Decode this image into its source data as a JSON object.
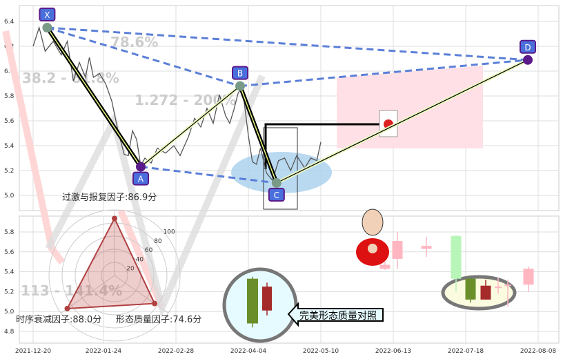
{
  "chart_data": [
    {
      "type": "line",
      "panel": "top",
      "ylim": [
        4.9,
        6.5
      ],
      "yticks": [
        5.0,
        5.2,
        5.4,
        5.6,
        5.8,
        6.0,
        6.2,
        6.4
      ],
      "grid": true,
      "pattern_points": [
        {
          "label": "X",
          "date": "2021-12-27",
          "value": 6.35
        },
        {
          "label": "A",
          "date": "2022-02-11",
          "value": 5.23
        },
        {
          "label": "B",
          "date": "2022-03-31",
          "value": 5.88
        },
        {
          "label": "C",
          "date": "2022-04-18",
          "value": 5.1
        },
        {
          "label": "D",
          "date": "2022-08-05",
          "value": 6.09
        }
      ],
      "price_series": [
        [
          "2021-12-20",
          6.2
        ],
        [
          "2021-12-23",
          6.35
        ],
        [
          "2021-12-26",
          6.16
        ],
        [
          "2021-12-30",
          6.24
        ],
        [
          "2022-01-03",
          6.13
        ],
        [
          "2022-01-06",
          6.24
        ],
        [
          "2022-01-09",
          5.92
        ],
        [
          "2022-01-12",
          6.07
        ],
        [
          "2022-01-15",
          5.95
        ],
        [
          "2022-01-17",
          6.11
        ],
        [
          "2022-01-19",
          5.95
        ],
        [
          "2022-01-22",
          5.98
        ],
        [
          "2022-01-25",
          5.9
        ],
        [
          "2022-01-28",
          5.76
        ],
        [
          "2022-01-31",
          5.52
        ],
        [
          "2022-02-03",
          5.33
        ],
        [
          "2022-02-05",
          5.32
        ],
        [
          "2022-02-07",
          5.52
        ],
        [
          "2022-02-09",
          5.45
        ],
        [
          "2022-02-11",
          5.24
        ],
        [
          "2022-02-13",
          5.3
        ],
        [
          "2022-02-16",
          5.26
        ],
        [
          "2022-02-19",
          5.38
        ],
        [
          "2022-02-23",
          5.34
        ],
        [
          "2022-02-27",
          5.4
        ],
        [
          "2022-03-02",
          5.32
        ],
        [
          "2022-03-06",
          5.47
        ],
        [
          "2022-03-09",
          5.62
        ],
        [
          "2022-03-12",
          5.55
        ],
        [
          "2022-03-15",
          5.7
        ],
        [
          "2022-03-18",
          5.58
        ],
        [
          "2022-03-21",
          5.81
        ],
        [
          "2022-03-24",
          5.64
        ],
        [
          "2022-03-26",
          5.58
        ],
        [
          "2022-03-28",
          5.69
        ],
        [
          "2022-03-30",
          5.82
        ],
        [
          "2022-04-01",
          5.88
        ],
        [
          "2022-04-04",
          5.48
        ],
        [
          "2022-04-06",
          5.27
        ],
        [
          "2022-04-08",
          5.25
        ],
        [
          "2022-04-10",
          5.38
        ],
        [
          "2022-04-13",
          5.18
        ],
        [
          "2022-04-16",
          5.12
        ],
        [
          "2022-04-19",
          5.28
        ],
        [
          "2022-04-22",
          5.3
        ],
        [
          "2022-04-25",
          5.2
        ],
        [
          "2022-04-28",
          5.32
        ],
        [
          "2022-05-02",
          5.22
        ],
        [
          "2022-05-05",
          5.3
        ],
        [
          "2022-05-08",
          5.28
        ],
        [
          "2022-05-10",
          5.43
        ]
      ],
      "fib_labels": [
        "78.6%",
        "38.2 - 61.8%",
        "1.272 - 200%"
      ]
    },
    {
      "type": "candlestick",
      "panel": "bottom",
      "ylim": [
        4.7,
        5.95
      ],
      "yticks": [
        4.8,
        5.0,
        5.2,
        5.4,
        5.6,
        5.8
      ],
      "xticks": [
        "2021-12-20",
        "2022-01-24",
        "2022-02-28",
        "2022-04-04",
        "2022-05-10",
        "2022-06-13",
        "2022-07-18",
        "2022-08-08"
      ],
      "reference_candles": [
        {
          "color": "green",
          "open": 5.33,
          "close": 4.88,
          "high": 5.35,
          "low": 4.84
        },
        {
          "color": "red",
          "open": 5.01,
          "close": 5.25,
          "high": 5.29,
          "low": 4.96
        }
      ],
      "recent_candles": [
        {
          "color": "pink",
          "open": 5.43,
          "close": 5.47,
          "high": 5.5,
          "low": 5.42
        },
        {
          "color": "pink",
          "open": 5.53,
          "close": 5.71,
          "high": 5.8,
          "low": 5.43
        },
        {
          "color": "pink",
          "open": 5.63,
          "close": 5.66,
          "high": 5.75,
          "low": 5.55
        },
        {
          "color": "lightgreen",
          "open": 5.76,
          "close": 5.33,
          "high": 5.77,
          "low": 5.2
        },
        {
          "color": "green",
          "open": 5.33,
          "close": 5.12,
          "high": 5.34,
          "low": 5.09
        },
        {
          "color": "red",
          "open": 5.12,
          "close": 5.26,
          "high": 5.32,
          "low": 5.12
        },
        {
          "color": "pink",
          "open": 5.24,
          "close": 5.25,
          "high": 5.34,
          "low": 5.18
        },
        {
          "color": "pink",
          "open": 5.26,
          "close": 5.27,
          "high": 5.32,
          "low": 5.05
        },
        {
          "color": "pink",
          "open": 5.27,
          "close": 5.43,
          "high": 5.45,
          "low": 5.2
        }
      ],
      "watermark": "113 - 141.4%"
    },
    {
      "type": "radar",
      "rticks": [
        "20",
        "40",
        "60",
        "80",
        "100"
      ],
      "axes": [
        {
          "label": "过激与报复因子:86.9分",
          "value": 86.9
        },
        {
          "label": "形态质量因子:74.6分",
          "value": 74.6
        },
        {
          "label": "时序衰减因子:88.0分",
          "value": 88.0
        }
      ]
    }
  ],
  "callout": "完美形态质量对照",
  "colors": {
    "pattern_dash": "#5b7fd8",
    "marker_bg": "#4a6fdc",
    "marker_border": "#5a1a8a",
    "radar": "#b04040",
    "bull_zone": "#ffe0e6",
    "ellipse": "#a8d0ee"
  }
}
